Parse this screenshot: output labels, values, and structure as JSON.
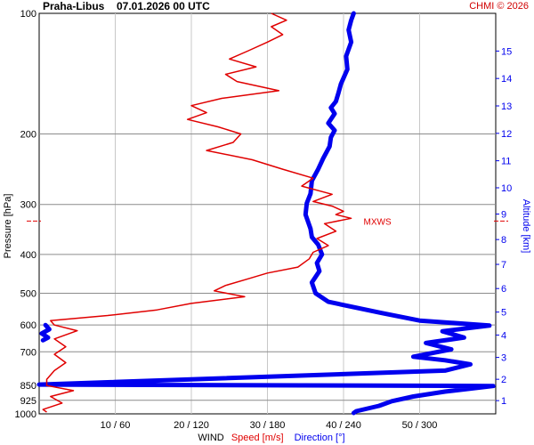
{
  "header": {
    "station": "Praha-Libus",
    "timestamp": "07.01.2026 00 UTC",
    "credit": "CHMI © 2026"
  },
  "chart_data": {
    "type": "line",
    "title": "Praha-Libus   07.01.2026 00 UTC",
    "ylabel_left": "Pressure [hPa]",
    "ylabel_right": "Altitude [km]",
    "xlabel": {
      "prefix": "WIND",
      "speed": "Speed [m/s]",
      "direction": "Direction [°]"
    },
    "pressure_axis": {
      "scale": "log",
      "range": [
        100,
        1000
      ],
      "ticks": [
        100,
        200,
        300,
        400,
        500,
        600,
        700,
        850,
        925,
        1000
      ]
    },
    "altitude_axis": {
      "ticks": [
        1,
        2,
        3,
        4,
        5,
        6,
        7,
        8,
        9,
        10,
        11,
        12,
        13,
        14,
        15
      ]
    },
    "x_axis": {
      "speed_range": [
        0,
        60
      ],
      "direction_range": [
        0,
        360
      ],
      "ticks": [
        "10 / 60",
        "20 / 120",
        "30 / 180",
        "40 / 240",
        "50 / 300"
      ]
    },
    "max_wind_label": "MXWS",
    "max_wind_pressure": 325,
    "colors": {
      "speed": "#e00000",
      "direction": "#0000ee",
      "credit": "#d00000"
    },
    "series": [
      {
        "name": "Speed [m/s]",
        "unit": "m/s",
        "points": [
          {
            "p": 100,
            "v": 30.5
          },
          {
            "p": 104,
            "v": 32.5
          },
          {
            "p": 108,
            "v": 30.5
          },
          {
            "p": 113,
            "v": 32.0
          },
          {
            "p": 118,
            "v": 30.0
          },
          {
            "p": 124,
            "v": 27.5
          },
          {
            "p": 130,
            "v": 25.0
          },
          {
            "p": 136,
            "v": 28.5
          },
          {
            "p": 142,
            "v": 24.5
          },
          {
            "p": 148,
            "v": 26.0
          },
          {
            "p": 156,
            "v": 31.5
          },
          {
            "p": 163,
            "v": 24.0
          },
          {
            "p": 170,
            "v": 20.0
          },
          {
            "p": 177,
            "v": 22.0
          },
          {
            "p": 184,
            "v": 19.5
          },
          {
            "p": 192,
            "v": 23.5
          },
          {
            "p": 200,
            "v": 26.5
          },
          {
            "p": 210,
            "v": 25.5
          },
          {
            "p": 220,
            "v": 22.0
          },
          {
            "p": 232,
            "v": 28.0
          },
          {
            "p": 245,
            "v": 32.0
          },
          {
            "p": 258,
            "v": 36.0
          },
          {
            "p": 270,
            "v": 34.5
          },
          {
            "p": 283,
            "v": 38.5
          },
          {
            "p": 295,
            "v": 36.0
          },
          {
            "p": 303,
            "v": 38.5
          },
          {
            "p": 312,
            "v": 40.0
          },
          {
            "p": 318,
            "v": 39.0
          },
          {
            "p": 325,
            "v": 41.0
          },
          {
            "p": 335,
            "v": 37.5
          },
          {
            "p": 350,
            "v": 39.0
          },
          {
            "p": 365,
            "v": 36.5
          },
          {
            "p": 380,
            "v": 38.0
          },
          {
            "p": 395,
            "v": 36.0
          },
          {
            "p": 410,
            "v": 35.5
          },
          {
            "p": 430,
            "v": 34.0
          },
          {
            "p": 445,
            "v": 30.0
          },
          {
            "p": 460,
            "v": 27.5
          },
          {
            "p": 478,
            "v": 24.5
          },
          {
            "p": 493,
            "v": 23.0
          },
          {
            "p": 510,
            "v": 27.0
          },
          {
            "p": 530,
            "v": 20.0
          },
          {
            "p": 550,
            "v": 15.5
          },
          {
            "p": 568,
            "v": 9.0
          },
          {
            "p": 585,
            "v": 1.5
          },
          {
            "p": 600,
            "v": 2.0
          },
          {
            "p": 620,
            "v": 5.0
          },
          {
            "p": 650,
            "v": 2.0
          },
          {
            "p": 680,
            "v": 3.5
          },
          {
            "p": 710,
            "v": 2.0
          },
          {
            "p": 745,
            "v": 3.5
          },
          {
            "p": 780,
            "v": 2.0
          },
          {
            "p": 820,
            "v": 1.0
          },
          {
            "p": 850,
            "v": 1.0
          },
          {
            "p": 875,
            "v": 4.5
          },
          {
            "p": 905,
            "v": 1.5
          },
          {
            "p": 940,
            "v": 3.0
          },
          {
            "p": 975,
            "v": 0.5
          },
          {
            "p": 990,
            "v": 1.0
          }
        ]
      },
      {
        "name": "Direction [°]",
        "unit": "deg",
        "points": [
          {
            "p": 100,
            "v": 248
          },
          {
            "p": 104,
            "v": 246
          },
          {
            "p": 110,
            "v": 244
          },
          {
            "p": 118,
            "v": 246
          },
          {
            "p": 128,
            "v": 242
          },
          {
            "p": 138,
            "v": 243
          },
          {
            "p": 150,
            "v": 238
          },
          {
            "p": 158,
            "v": 236
          },
          {
            "p": 166,
            "v": 234
          },
          {
            "p": 172,
            "v": 230
          },
          {
            "p": 178,
            "v": 233
          },
          {
            "p": 188,
            "v": 228
          },
          {
            "p": 196,
            "v": 233
          },
          {
            "p": 204,
            "v": 230
          },
          {
            "p": 215,
            "v": 229
          },
          {
            "p": 230,
            "v": 224
          },
          {
            "p": 245,
            "v": 220
          },
          {
            "p": 262,
            "v": 215
          },
          {
            "p": 282,
            "v": 214
          },
          {
            "p": 298,
            "v": 211
          },
          {
            "p": 318,
            "v": 210
          },
          {
            "p": 345,
            "v": 214
          },
          {
            "p": 362,
            "v": 215
          },
          {
            "p": 378,
            "v": 220
          },
          {
            "p": 400,
            "v": 223
          },
          {
            "p": 420,
            "v": 219
          },
          {
            "p": 440,
            "v": 221
          },
          {
            "p": 470,
            "v": 215
          },
          {
            "p": 500,
            "v": 218
          },
          {
            "p": 525,
            "v": 228
          },
          {
            "p": 560,
            "v": 270
          },
          {
            "p": 585,
            "v": 300
          },
          {
            "p": 602,
            "v": 355
          },
          {
            "p": 622,
            "v": 318
          },
          {
            "p": 645,
            "v": 335
          },
          {
            "p": 665,
            "v": 305
          },
          {
            "p": 690,
            "v": 325
          },
          {
            "p": 720,
            "v": 295
          },
          {
            "p": 735,
            "v": 320
          },
          {
            "p": 752,
            "v": 340
          },
          {
            "p": 780,
            "v": 320
          },
          {
            "p": 845,
            "v": 0
          },
          {
            "p": 852,
            "v": 358
          },
          {
            "p": 880,
            "v": 320
          },
          {
            "p": 905,
            "v": 295
          },
          {
            "p": 930,
            "v": 278
          },
          {
            "p": 955,
            "v": 268
          },
          {
            "p": 985,
            "v": 250
          },
          {
            "p": 995,
            "v": 248
          }
        ]
      }
    ],
    "low_level_direction_wrap": [
      {
        "p": 600,
        "v": 5
      },
      {
        "p": 615,
        "v": 8
      },
      {
        "p": 630,
        "v": 2
      },
      {
        "p": 645,
        "v": 7
      },
      {
        "p": 655,
        "v": 3
      }
    ]
  }
}
